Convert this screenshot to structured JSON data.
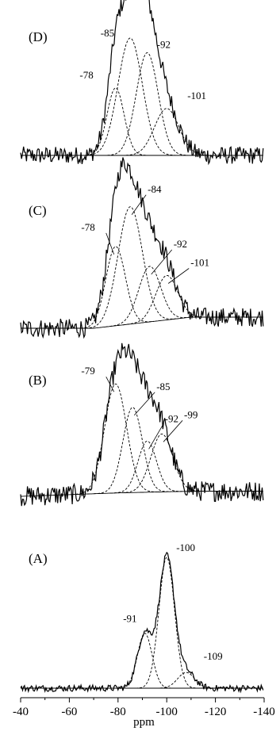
{
  "chart_data": {
    "type": "line",
    "xlabel": "ppm",
    "xlim": [
      -40,
      -140
    ],
    "x_ticks": [
      "-40",
      "-60",
      "-80",
      "-100",
      "-120",
      "-140"
    ],
    "panels": [
      {
        "id": "D",
        "label": "(D)",
        "peak_labels": [
          "-78",
          "-85",
          "-92",
          "-101"
        ],
        "peaks": [
          {
            "label": "-78",
            "center": -79,
            "height": 0.46,
            "width": 3.5
          },
          {
            "label": "-85",
            "center": -85,
            "height": 0.8,
            "width": 5.0
          },
          {
            "label": "-92",
            "center": -92,
            "height": 0.7,
            "width": 4.5
          },
          {
            "label": "-101",
            "center": -100,
            "height": 0.32,
            "width": 5.0
          }
        ],
        "baseline": [
          [
            -40,
            0
          ],
          [
            -140,
            0
          ]
        ]
      },
      {
        "id": "C",
        "label": "(C)",
        "peak_labels": [
          "-78",
          "-84",
          "-92",
          "-101"
        ],
        "peaks": [
          {
            "label": "-78",
            "center": -79,
            "height": 0.5,
            "width": 4.0
          },
          {
            "label": "-84",
            "center": -85,
            "height": 0.74,
            "width": 5.0
          },
          {
            "label": "-92",
            "center": -93,
            "height": 0.35,
            "width": 4.5
          },
          {
            "label": "-101",
            "center": -100,
            "height": 0.28,
            "width": 4.5
          }
        ],
        "baseline": [
          [
            -40,
            0.0
          ],
          [
            -70,
            0.0
          ],
          [
            -110,
            0.07
          ],
          [
            -140,
            0.07
          ]
        ]
      },
      {
        "id": "B",
        "label": "(B)",
        "peak_labels": [
          "-79",
          "-85",
          "-92",
          "-99"
        ],
        "peaks": [
          {
            "label": "-79",
            "center": -79,
            "height": 0.64,
            "width": 4.5
          },
          {
            "label": "-85",
            "center": -86,
            "height": 0.5,
            "width": 4.0
          },
          {
            "label": "-92",
            "center": -92,
            "height": 0.3,
            "width": 3.8
          },
          {
            "label": "-99",
            "center": -98,
            "height": 0.34,
            "width": 4.5
          }
        ],
        "baseline": [
          [
            -40,
            0.0
          ],
          [
            -80,
            0.02
          ],
          [
            -110,
            0.03
          ],
          [
            -140,
            0.03
          ]
        ]
      },
      {
        "id": "A",
        "label": "(A)",
        "peak_labels": [
          "-91",
          "-100",
          "-109"
        ],
        "peaks": [
          {
            "label": "-91",
            "center": -91,
            "height": 0.42,
            "width": 3.0
          },
          {
            "label": "-100",
            "center": -100,
            "height": 1.0,
            "width": 3.2
          },
          {
            "label": "-109",
            "center": -108,
            "height": 0.12,
            "width": 3.5
          }
        ],
        "baseline": [
          [
            -40,
            0
          ],
          [
            -140,
            0
          ]
        ]
      }
    ]
  }
}
